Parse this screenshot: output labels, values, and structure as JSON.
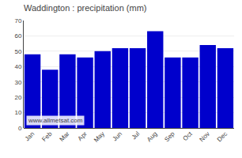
{
  "chart_data": {
    "type": "bar",
    "title": "Waddington : precipitation (mm)",
    "categories": [
      "Jan",
      "Feb",
      "Mar",
      "Apr",
      "May",
      "Jun",
      "Jul",
      "Aug",
      "Sep",
      "Oct",
      "Nov",
      "Dec"
    ],
    "values": [
      48,
      38,
      48,
      46,
      50,
      52,
      52,
      63,
      46,
      46,
      54,
      52
    ],
    "color": "#0000CC",
    "ylim": [
      0,
      70
    ],
    "yticks": [
      0,
      10,
      20,
      30,
      40,
      50,
      60,
      70
    ],
    "grid": true,
    "annotations": [
      "www.allmetsat.com"
    ]
  }
}
